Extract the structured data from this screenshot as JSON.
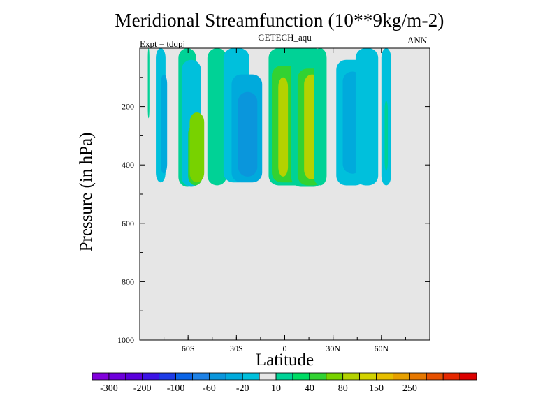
{
  "chart_data": {
    "type": "heatmap",
    "title": "Meridional Streamfunction (10**9kg/m-2)",
    "subtitle": "GETECH_aqu",
    "left_string": "Expt = tdqpj",
    "right_string": "ANN",
    "xlabel": "Latitude",
    "ylabel": "Pressure (in hPa)",
    "x_ticks": [
      {
        "value": -60,
        "label": "60S"
      },
      {
        "value": -30,
        "label": "30S"
      },
      {
        "value": 0,
        "label": "0"
      },
      {
        "value": 30,
        "label": "30N"
      },
      {
        "value": 60,
        "label": "60N"
      }
    ],
    "y_ticks": [
      200,
      400,
      600,
      800,
      1000
    ],
    "xlim": [
      -90,
      90
    ],
    "ylim": [
      0,
      1000
    ],
    "y_inverted": true,
    "background_color": "#e6e6e6",
    "colorbar": {
      "labels": [
        "-300",
        "-200",
        "-100",
        "-60",
        "-20",
        "10",
        "40",
        "80",
        "150",
        "250"
      ],
      "colors": [
        "#8200dc",
        "#6e00dc",
        "#5a00dc",
        "#3c14e6",
        "#1e3ce6",
        "#0a64e6",
        "#1e82e6",
        "#0a96dc",
        "#00aadc",
        "#00c0dc",
        "#e6e6e6",
        "#00d296",
        "#00dc64",
        "#32d232",
        "#78d200",
        "#b4d200",
        "#d2d200",
        "#e6be00",
        "#e6a000",
        "#e67800",
        "#e65000",
        "#e62800",
        "#dc0000"
      ]
    },
    "shaded_regions": [
      {
        "lat_range": [
          -85,
          -84
        ],
        "p_range": [
          0,
          240
        ],
        "level": 10
      },
      {
        "lat_range": [
          -80,
          -74
        ],
        "p_range": [
          0,
          460
        ],
        "level": -20
      },
      {
        "lat_range": [
          -77,
          -73
        ],
        "p_range": [
          90,
          430
        ],
        "level": -40
      },
      {
        "lat_range": [
          -66,
          -55
        ],
        "p_range": [
          0,
          475
        ],
        "level": 10
      },
      {
        "lat_range": [
          -64,
          -52
        ],
        "p_range": [
          40,
          475
        ],
        "level": -20
      },
      {
        "lat_range": [
          -60,
          -51
        ],
        "p_range": [
          260,
          470
        ],
        "level": 40
      },
      {
        "lat_range": [
          -59,
          -50
        ],
        "p_range": [
          220,
          460
        ],
        "level": 60
      },
      {
        "lat_range": [
          -48,
          -36
        ],
        "p_range": [
          0,
          470
        ],
        "level": 10
      },
      {
        "lat_range": [
          -38,
          -22
        ],
        "p_range": [
          0,
          460
        ],
        "level": -20
      },
      {
        "lat_range": [
          -33,
          -14
        ],
        "p_range": [
          90,
          460
        ],
        "level": -40
      },
      {
        "lat_range": [
          -29,
          -17
        ],
        "p_range": [
          150,
          440
        ],
        "level": -60
      },
      {
        "lat_range": [
          -10,
          14
        ],
        "p_range": [
          0,
          470
        ],
        "level": 10
      },
      {
        "lat_range": [
          -8,
          10
        ],
        "p_range": [
          60,
          460
        ],
        "level": 40
      },
      {
        "lat_range": [
          -4,
          2
        ],
        "p_range": [
          100,
          440
        ],
        "level": 80
      },
      {
        "lat_range": [
          4,
          24
        ],
        "p_range": [
          0,
          475
        ],
        "level": 10
      },
      {
        "lat_range": [
          8,
          24
        ],
        "p_range": [
          70,
          470
        ],
        "level": 40
      },
      {
        "lat_range": [
          12,
          22
        ],
        "p_range": [
          90,
          450
        ],
        "level": 80
      },
      {
        "lat_range": [
          18,
          26
        ],
        "p_range": [
          0,
          470
        ],
        "level": 10
      },
      {
        "lat_range": [
          32,
          50
        ],
        "p_range": [
          40,
          470
        ],
        "level": -20
      },
      {
        "lat_range": [
          36,
          48
        ],
        "p_range": [
          80,
          430
        ],
        "level": -40
      },
      {
        "lat_range": [
          44,
          58
        ],
        "p_range": [
          0,
          470
        ],
        "level": -20
      },
      {
        "lat_range": [
          60,
          66
        ],
        "p_range": [
          0,
          470
        ],
        "level": -20
      },
      {
        "lat_range": [
          62,
          64
        ],
        "p_range": [
          180,
          420
        ],
        "level": 10
      }
    ]
  }
}
